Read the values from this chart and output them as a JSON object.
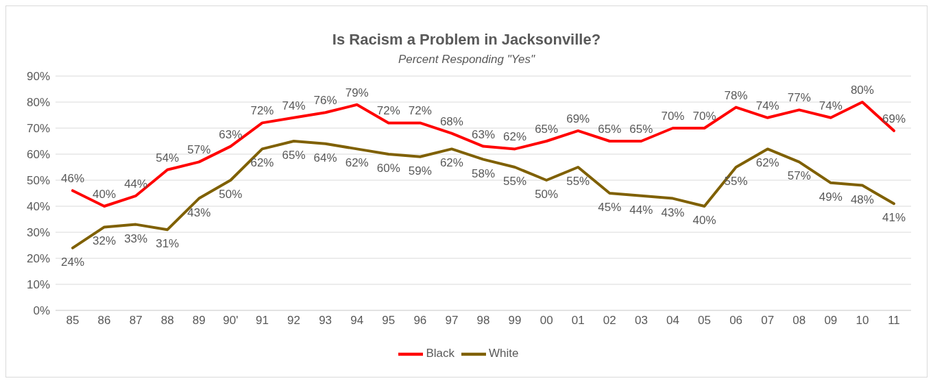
{
  "chart_data": {
    "type": "line",
    "title": "Is Racism a Problem in Jacksonville?",
    "subtitle": "Percent Responding \"Yes\"",
    "categories": [
      "85",
      "86",
      "87",
      "88",
      "89",
      "90'",
      "91",
      "92",
      "93",
      "94",
      "95",
      "96",
      "97",
      "98",
      "99",
      "00",
      "01",
      "02",
      "03",
      "04",
      "05",
      "06",
      "07",
      "08",
      "09",
      "10",
      "11"
    ],
    "series": [
      {
        "name": "White",
        "color": "#7f6000",
        "values": [
          24,
          32,
          33,
          31,
          43,
          50,
          62,
          65,
          64,
          62,
          60,
          59,
          62,
          58,
          55,
          50,
          55,
          45,
          44,
          43,
          40,
          55,
          62,
          57,
          49,
          48,
          41
        ],
        "value_labels": [
          "24%",
          "32%",
          "33%",
          "31%",
          "43%",
          "50%",
          "62%",
          "65%",
          "64%",
          "62%",
          "60%",
          "59%",
          "62%",
          "58%",
          "55%",
          "50%",
          "55%",
          "45%",
          "44%",
          "43%",
          "40%",
          "55%",
          "62%",
          "57%",
          "49%",
          "48%",
          "41%"
        ]
      },
      {
        "name": "Black",
        "color": "#ff0000",
        "values": [
          46,
          40,
          44,
          54,
          57,
          63,
          72,
          74,
          76,
          79,
          72,
          72,
          68,
          63,
          62,
          65,
          69,
          65,
          65,
          70,
          70,
          78,
          74,
          77,
          74,
          80,
          69
        ],
        "value_labels": [
          "46%",
          "40%",
          "44%",
          "54%",
          "57%",
          "63%",
          "72%",
          "74%",
          "76%",
          "79%",
          "72%",
          "72%",
          "68%",
          "63%",
          "62%",
          "65%",
          "69%",
          "65%",
          "65%",
          "70%",
          "70%",
          "78%",
          "74%",
          "77%",
          "74%",
          "80%",
          "69%"
        ]
      }
    ],
    "ylim": [
      0,
      90
    ],
    "yticks": [
      {
        "value": 0,
        "label": "0%"
      },
      {
        "value": 10,
        "label": "10%"
      },
      {
        "value": 20,
        "label": "20%"
      },
      {
        "value": 30,
        "label": "30%"
      },
      {
        "value": 40,
        "label": "40%"
      },
      {
        "value": 50,
        "label": "50%"
      },
      {
        "value": 60,
        "label": "60%"
      },
      {
        "value": 70,
        "label": "70%"
      },
      {
        "value": 80,
        "label": "80%"
      },
      {
        "value": 90,
        "label": "90%"
      }
    ],
    "grid": "y",
    "legend": "bottom",
    "marker": "none",
    "line_style": "solid"
  }
}
